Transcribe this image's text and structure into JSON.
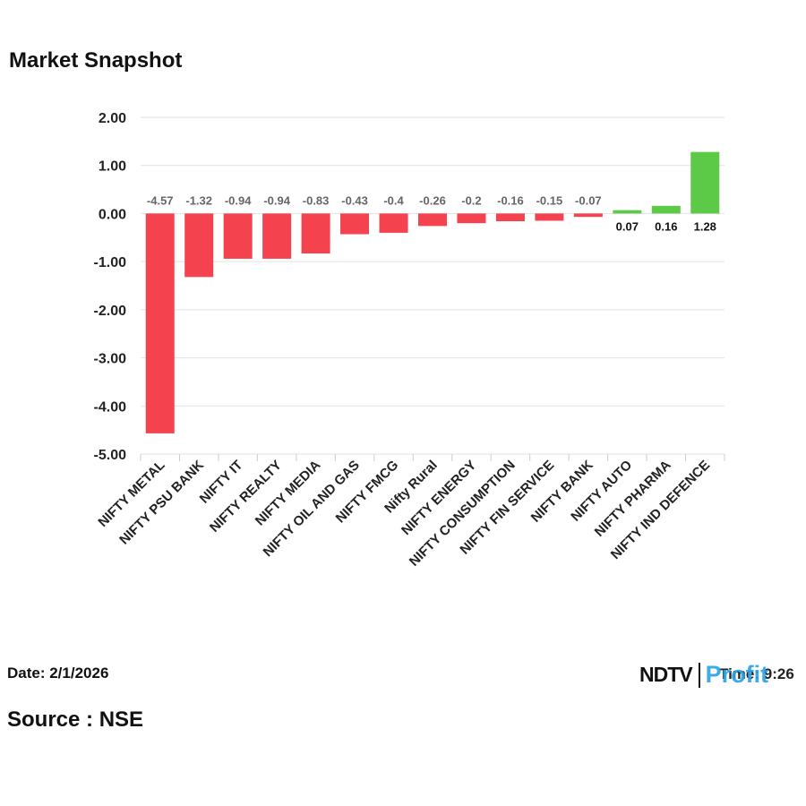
{
  "header": {
    "title": "Market Snapshot"
  },
  "chart_data": {
    "type": "bar",
    "title": "Market Snapshot",
    "xlabel": "",
    "ylabel": "",
    "ylim": [
      -5,
      2
    ],
    "yticks": [
      2,
      1,
      0,
      -1,
      -2,
      -3,
      -4,
      -5
    ],
    "ytick_labels": [
      "2.00",
      "1.00",
      "0.00",
      "-1.00",
      "-2.00",
      "-3.00",
      "-4.00",
      "-5.00"
    ],
    "grid": true,
    "categories": [
      "NIFTY METAL",
      "NIFTY PSU BANK",
      "NIFTY IT",
      "NIFTY REALTY",
      "NIFTY MEDIA",
      "NIFTY OIL AND GAS",
      "NIFTY FMCG",
      "Nifty Rural",
      "NIFTY ENERGY",
      "NIFTY CONSUMPTION",
      "NIFTY FIN SERVICE",
      "NIFTY BANK",
      "NIFTY AUTO",
      "NIFTY PHARMA",
      "NIFTY IND DEFENCE"
    ],
    "values": [
      -4.57,
      -1.32,
      -0.94,
      -0.94,
      -0.83,
      -0.43,
      -0.4,
      -0.26,
      -0.2,
      -0.16,
      -0.15,
      -0.07,
      0.07,
      0.16,
      1.28
    ],
    "value_labels": [
      "-4.57",
      "-1.32",
      "-0.94",
      "-0.94",
      "-0.83",
      "-0.43",
      "-0.4",
      "-0.26",
      "-0.2",
      "-0.16",
      "-0.15",
      "-0.07",
      "0.07",
      "0.16",
      "1.28"
    ],
    "colors": {
      "negative": "#f4434e",
      "positive": "#5dca47",
      "grid": "#e2e2e2",
      "axis_text": "#222222",
      "neg_label": "#666666",
      "pos_label": "#111111"
    }
  },
  "footer": {
    "date": "Date: 2/1/2026",
    "source": "Source : NSE",
    "time": "Time: 9:26",
    "logo_ndtv": "NDTV",
    "logo_profit": "Profit"
  }
}
